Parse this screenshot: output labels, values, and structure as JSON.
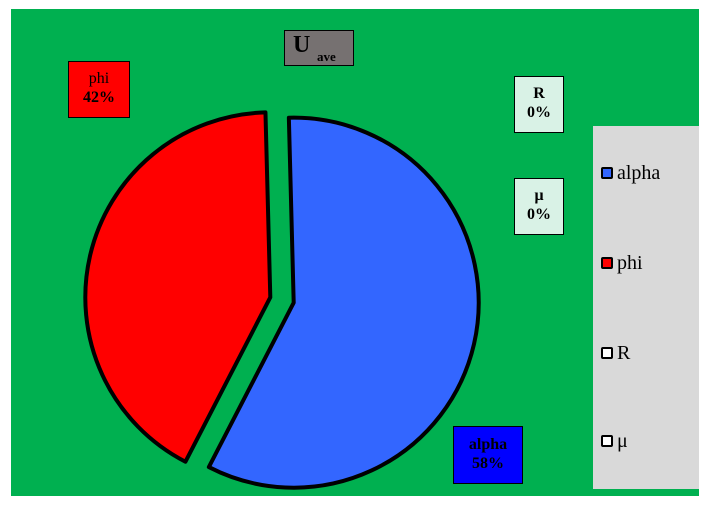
{
  "chart_data": {
    "type": "pie",
    "title": "U",
    "title_subscript": "ave",
    "slices": [
      {
        "name": "alpha",
        "value": 58,
        "label_name": "alpha",
        "label_pct": "58%",
        "color": "#3366ff",
        "label_bg": "#0000ff",
        "label_fg": "#000000"
      },
      {
        "name": "phi",
        "value": 42,
        "label_name": "phi",
        "label_pct": "42%",
        "color": "#ff0000",
        "label_bg": "#ff0000",
        "label_fg": "#000000"
      },
      {
        "name": "R",
        "value": 0,
        "label_name": "R",
        "label_pct": "0%",
        "color": "#ffffff",
        "label_bg": "#d9f2e6",
        "label_fg": "#000000"
      },
      {
        "name": "μ",
        "value": 0,
        "label_name": "μ",
        "label_pct": "0%",
        "color": "#ffffff",
        "label_bg": "#d9f2e6",
        "label_fg": "#000000"
      }
    ],
    "legend": {
      "position": "right",
      "items": [
        "alpha",
        "phi",
        "R",
        "μ"
      ]
    },
    "background_color": "#00b050",
    "legend_background": "#d9d9d9"
  }
}
